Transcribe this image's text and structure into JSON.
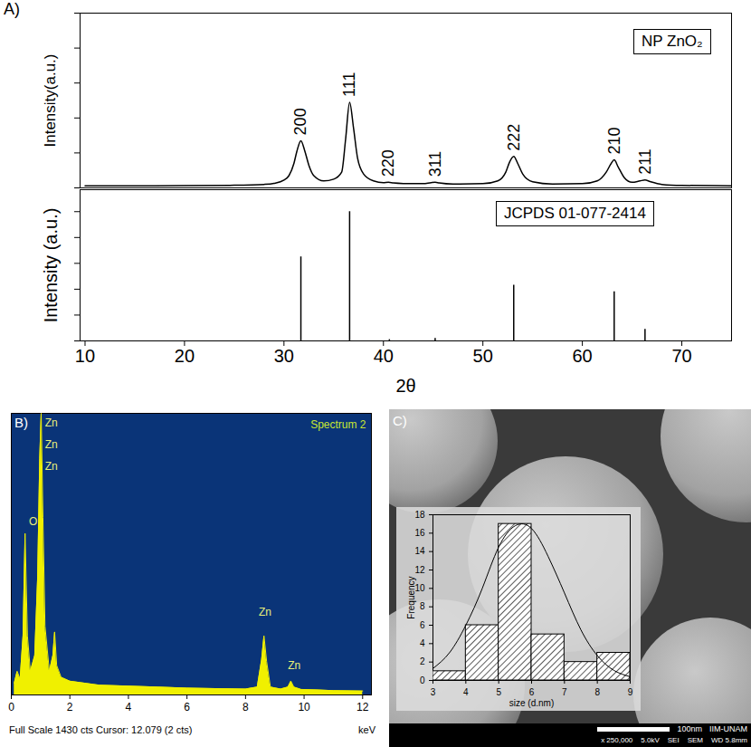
{
  "chart_data": [
    {
      "panel": "A)",
      "type": "line",
      "ylabel": "Intensity(a.u.)",
      "x": [
        10,
        15,
        20,
        25,
        28,
        29,
        30,
        30.5,
        31,
        31.3,
        31.7,
        32.1,
        32.5,
        33,
        34,
        35,
        35.8,
        36.2,
        36.6,
        37,
        37.4,
        38,
        39,
        40,
        40.5,
        41,
        42,
        44,
        44.8,
        45.2,
        45.6,
        47,
        50,
        51.5,
        52.3,
        52.7,
        53.1,
        53.5,
        54,
        55,
        57,
        60,
        61.5,
        62.4,
        62.9,
        63.2,
        63.6,
        64.2,
        65,
        65.8,
        66.3,
        66.8,
        68,
        70,
        75
      ],
      "series": [
        {
          "name": "NP ZnO₂",
          "color": "#000000",
          "values": [
            1.2,
            1.2,
            1.3,
            1.5,
            2,
            2.6,
            4.5,
            7,
            14,
            21,
            27,
            21,
            13,
            7,
            4,
            5,
            9,
            28,
            49,
            34,
            17,
            8,
            4,
            3,
            3.2,
            2.8,
            2.5,
            2.4,
            3,
            3.2,
            2.8,
            2.2,
            2.4,
            4,
            9,
            15,
            18,
            14,
            8,
            3.5,
            2.2,
            2.4,
            4,
            9,
            14,
            16,
            12,
            6,
            3.2,
            4,
            4.5,
            3.6,
            2,
            1.4,
            1.2
          ]
        }
      ],
      "xlim": [
        9.5,
        75
      ],
      "ylim": [
        0,
        100
      ],
      "yticks": [
        0,
        20,
        40,
        60,
        80,
        100
      ],
      "tick_labels": false,
      "legend": "top-right",
      "annotations": [
        {
          "text": "200",
          "x": 31.7,
          "y": 27
        },
        {
          "text": "111",
          "x": 36.6,
          "y": 49
        },
        {
          "text": "220",
          "x": 40.5,
          "y": 3.2
        },
        {
          "text": "311",
          "x": 45.2,
          "y": 3.2
        },
        {
          "text": "222",
          "x": 53.1,
          "y": 18
        },
        {
          "text": "210",
          "x": 63.2,
          "y": 16
        },
        {
          "text": "211",
          "x": 66.3,
          "y": 4.5
        }
      ]
    },
    {
      "type": "stem",
      "xlabel": "2θ",
      "ylabel": "Intensity (a.u.)",
      "x": [
        31.7,
        36.6,
        40.6,
        45.2,
        53.1,
        63.2,
        66.3
      ],
      "series": [
        {
          "name": "JCPDS 01-077-2414",
          "color": "#000000",
          "values": [
            65,
            100,
            1,
            2,
            43,
            38,
            9
          ]
        }
      ],
      "xlim": [
        9.5,
        75
      ],
      "xticks": [
        10,
        20,
        30,
        40,
        50,
        60,
        70
      ],
      "ylim": [
        0,
        117
      ],
      "yticks": [
        0,
        20,
        40,
        60,
        80,
        100
      ],
      "tick_labels": "x",
      "legend": "top-right"
    },
    {
      "panel": "B)",
      "type": "area",
      "title": "Spectrum 2",
      "xlabel": "keV",
      "caption": "Full Scale 1430 cts Cursor: 12.079 (2 cts)",
      "x": [
        0.1,
        0.2,
        0.3,
        0.4,
        0.47,
        0.55,
        0.65,
        0.8,
        0.9,
        0.97,
        1.02,
        1.08,
        1.15,
        1.3,
        1.42,
        1.48,
        1.55,
        1.7,
        2,
        2.5,
        3,
        4,
        5,
        6,
        7,
        8,
        8.4,
        8.55,
        8.63,
        8.72,
        8.85,
        9.2,
        9.45,
        9.55,
        9.65,
        9.9,
        10.5,
        11,
        12
      ],
      "values": [
        60,
        120,
        80,
        300,
        820,
        300,
        120,
        200,
        600,
        1200,
        1430,
        900,
        350,
        120,
        200,
        320,
        150,
        90,
        70,
        60,
        50,
        45,
        40,
        35,
        32,
        30,
        40,
        180,
        300,
        170,
        40,
        30,
        40,
        70,
        40,
        28,
        25,
        22,
        20
      ],
      "color": "#f0f000",
      "xlim": [
        0,
        12.3
      ],
      "xticks": [
        0,
        2,
        4,
        6,
        8,
        10,
        12
      ],
      "ylim": [
        0,
        1430
      ],
      "tick_labels": "x",
      "annotations": [
        {
          "text": "O",
          "x": 0.6,
          "y": 880
        },
        {
          "text": "Zn",
          "x": 1.15,
          "y": 1380
        },
        {
          "text": "Zn",
          "x": 1.15,
          "y": 1270
        },
        {
          "text": "Zn",
          "x": 1.15,
          "y": 1160
        },
        {
          "text": "Zn",
          "x": 8.45,
          "y": 420
        },
        {
          "text": "Zn",
          "x": 9.45,
          "y": 150
        }
      ]
    },
    {
      "type": "histogram",
      "xlabel": "size (d.nm)",
      "ylabel": "Frequency",
      "bins": [
        3,
        4,
        5,
        6,
        7,
        8,
        9
      ],
      "counts": [
        1,
        6,
        17,
        5,
        2,
        3
      ],
      "fit": {
        "x": [
          3,
          3.5,
          4,
          4.5,
          5,
          5.5,
          6,
          6.5,
          7,
          7.5,
          8,
          8.5,
          9
        ],
        "values": [
          1.3,
          3,
          6,
          10,
          14.5,
          16.8,
          16.5,
          13.5,
          9.5,
          5.5,
          2.7,
          1.1,
          0.4
        ]
      },
      "xlim": [
        3,
        9
      ],
      "xticks": [
        3,
        4,
        5,
        6,
        7,
        8,
        9
      ],
      "ylim": [
        0,
        18
      ],
      "yticks": [
        0,
        2,
        4,
        6,
        8,
        10,
        12,
        14,
        16,
        18
      ]
    }
  ],
  "image": {
    "panel": "C)",
    "scale_bar": "100nm",
    "institution": "IIM-UNAM",
    "settings": [
      "x 250,000",
      "5.0kV",
      "SEI",
      "SEM",
      "WD 5.8mm"
    ]
  }
}
